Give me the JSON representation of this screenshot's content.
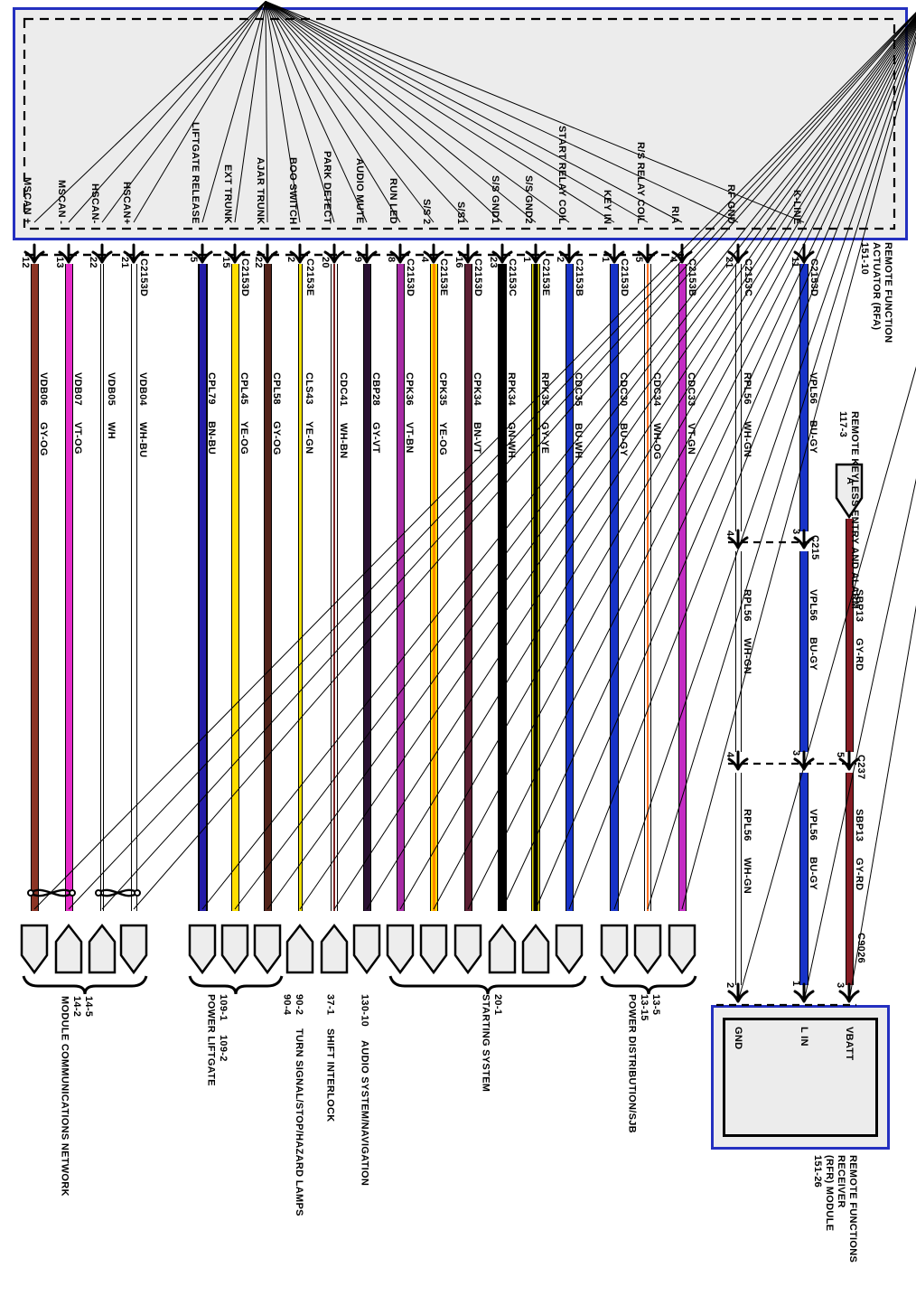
{
  "rfa_module": {
    "name_lines": [
      "REMOTE FUNCTION",
      "ACTUATOR (RFA)",
      "151-10"
    ]
  },
  "wires": [
    {
      "name": "MSCAN +",
      "pin": "12",
      "connector": "",
      "circuit": "VDB06",
      "color_code": "GY-OG",
      "paint": {
        "style": "solid",
        "fill": "#8C3525",
        "stripe": "",
        "w": 9
      },
      "twist_pair": true
    },
    {
      "name": "MSCAN -",
      "pin": "13",
      "connector": "",
      "circuit": "VDB07",
      "color_code": "VT-OG",
      "paint": {
        "style": "solid",
        "fill": "#E62BC8",
        "stripe": "",
        "w": 9
      },
      "twist_pair": true
    },
    {
      "name": "HSCAN-",
      "pin": "22",
      "connector": "",
      "circuit": "VDB05",
      "color_code": "WH",
      "paint": {
        "style": "double",
        "fill": "#FFFFFF",
        "stripe": "",
        "w": 4
      },
      "twist_pair": true
    },
    {
      "name": "HSCAN+",
      "pin": "21",
      "connector": "C2153D",
      "circuit": "VDB04",
      "color_code": "WH-BU",
      "paint": {
        "style": "double",
        "fill": "#FFFFFF",
        "stripe": "",
        "w": 7
      },
      "twist_pair": true
    },
    {
      "name": "LIFTGATE RELEASE",
      "pin": "5",
      "connector": "",
      "circuit": "CPL79",
      "color_code": "BN-BU",
      "paint": {
        "style": "heavy",
        "fill": "#231CA8",
        "stripe": "",
        "w": 11
      }
    },
    {
      "name": "EXT TRUNK",
      "pin": "15",
      "connector": "C2153D",
      "circuit": "CPL45",
      "color_code": "YE-OG",
      "paint": {
        "style": "solid",
        "fill": "#FFDE00",
        "stripe": "",
        "w": 9
      }
    },
    {
      "name": "AJAR TRUNK",
      "pin": "22",
      "connector": "",
      "circuit": "CPL58",
      "color_code": "GY-OG",
      "paint": {
        "style": "solid",
        "fill": "#52231A",
        "stripe": "",
        "w": 9
      }
    },
    {
      "name": "BOO SWITCH",
      "pin": "2",
      "connector": "C2153E",
      "circuit": "CLS43",
      "color_code": "YE-GN",
      "paint": {
        "style": "solid",
        "fill": "#F0E000",
        "stripe": "",
        "w": 5
      }
    },
    {
      "name": "PARK DETECT",
      "pin": "20",
      "connector": "",
      "circuit": "CDC41",
      "color_code": "WH-BN",
      "paint": {
        "style": "stripe",
        "fill": "#FFFFFF",
        "stripe": "#7A2020",
        "w": 8
      }
    },
    {
      "name": "AUDIO MUTE",
      "pin": "9",
      "connector": "",
      "circuit": "CBP28",
      "color_code": "GY-VT",
      "paint": {
        "style": "solid",
        "fill": "#2A1133",
        "stripe": "",
        "w": 9
      }
    },
    {
      "name": "RUN LED",
      "pin": "8",
      "connector": "C2153D",
      "circuit": "CPK36",
      "color_code": "VT-BN",
      "paint": {
        "style": "solid",
        "fill": "#A62BA4",
        "stripe": "",
        "w": 9
      }
    },
    {
      "name": "S/S 2",
      "pin": "4",
      "connector": "C2153E",
      "circuit": "CPK35",
      "color_code": "YE-OG",
      "paint": {
        "style": "stripe",
        "fill": "#FFD900",
        "stripe": "#FF8A00",
        "w": 9
      }
    },
    {
      "name": "S/S1",
      "pin": "16",
      "connector": "C2153D",
      "circuit": "CPK34",
      "color_code": "BN-VT",
      "paint": {
        "style": "solid",
        "fill": "#5C1F33",
        "stripe": "",
        "w": 9
      }
    },
    {
      "name": "S/S GND1",
      "pin": "23",
      "connector": "C2153C",
      "circuit": "RPK34",
      "color_code": "GN-WH",
      "paint": {
        "style": "solid",
        "fill": "#000000",
        "stripe": "",
        "w": 10
      }
    },
    {
      "name": "S/S GND2",
      "pin": "1",
      "connector": "C2153E",
      "circuit": "RPK35",
      "color_code": "GY-YE",
      "paint": {
        "style": "stripewide",
        "fill": "#E0D800",
        "stripe": "#000000",
        "w": 10
      }
    },
    {
      "name": "START RELAY COIL",
      "pin": "2",
      "connector": "C2153B",
      "circuit": "CDC35",
      "color_code": "BU-WH",
      "paint": {
        "style": "solid",
        "fill": "#1733C8",
        "stripe": "",
        "w": 9
      }
    },
    {
      "name": "KEY IN",
      "pin": "1",
      "connector": "C2153D",
      "circuit": "CDC30",
      "color_code": "BU-GY",
      "paint": {
        "style": "solid",
        "fill": "#1733C8",
        "stripe": "",
        "w": 10
      }
    },
    {
      "name": "R/S RELAY COIL",
      "pin": "5",
      "connector": "",
      "circuit": "CDC34",
      "color_code": "WH-OG",
      "paint": {
        "style": "stripe",
        "fill": "#FFFFFF",
        "stripe": "#FF7020",
        "w": 8
      }
    },
    {
      "name": "RIA",
      "pin": "4",
      "connector": "C2153B",
      "circuit": "CDC33",
      "color_code": "VT-GN",
      "paint": {
        "style": "solid",
        "fill": "#C32CC3",
        "stripe": "",
        "w": 9
      }
    },
    {
      "name": "RF GND",
      "pin": "21",
      "connector": "C2153C",
      "circuit": "RPL56",
      "color_code": "WH-GN",
      "paint": {
        "style": "double",
        "fill": "#FFFFFF",
        "stripe": "",
        "w": 7
      }
    },
    {
      "name": "K-LINE",
      "pin": "11",
      "connector": "C2153D",
      "circuit": "VPL56",
      "color_code": "BU-GY",
      "paint": {
        "style": "solid",
        "fill": "#1733C8",
        "stripe": "",
        "w": 10
      }
    }
  ],
  "branch": {
    "flag_label": "A",
    "label_lines": [
      "REMOTE KEYLESS ENTRY AND ALARM",
      "117-3"
    ],
    "wire": {
      "circuit": "SBP13",
      "color_code": "GY-RD",
      "paint": {
        "style": "solid",
        "fill": "#871C24",
        "stripe": "",
        "w": 9
      }
    },
    "junction1": {
      "pins": [
        "4",
        "3"
      ],
      "connector": "C215"
    },
    "junction2": {
      "pins": [
        "4",
        "3",
        "5"
      ],
      "connector": "C237"
    },
    "module_entry": {
      "pins": [
        "2",
        "1",
        "3"
      ],
      "connector": "C9026"
    }
  },
  "rfr_module": {
    "pin_labels": [
      "GND",
      "L IN",
      "VBATT"
    ],
    "name_lines": [
      "REMOTE FUNCTIONS",
      "RECEIVER",
      "(RFR) MODULE",
      "151-26"
    ]
  },
  "groups": [
    {
      "lines": [
        [
          "MODULE COMMUNICATIONS NETWORK"
        ],
        [
          "14-2"
        ],
        [
          "14-5"
        ]
      ]
    },
    {
      "lines": [
        [
          "POWER LIFTGATE"
        ],
        [
          "109-1",
          "109-2"
        ]
      ]
    },
    {
      "lines": [
        [
          "90-4"
        ],
        [
          "90-2",
          "TURN SIGNAL/STOP/HAZARD LAMPS"
        ]
      ]
    },
    {
      "lines": [
        [
          "37-1",
          "SHIFT INTERLOCK"
        ]
      ]
    },
    {
      "lines": [
        [
          "130-10",
          "AUDIO SYSTEM/NAVIGATION"
        ]
      ]
    },
    {
      "lines": [
        [
          "STARTING SYSTEM"
        ],
        [
          "20-1"
        ]
      ]
    },
    {
      "lines": [
        [
          "POWER DISTRIBUTION/SJB"
        ],
        [
          "13-15"
        ],
        [
          "13-5"
        ]
      ]
    }
  ],
  "colors": {
    "box_border": "#2430C0",
    "box_fill": "#ECECEC",
    "connector_fill": "#EDEDED",
    "line": "#000000"
  }
}
